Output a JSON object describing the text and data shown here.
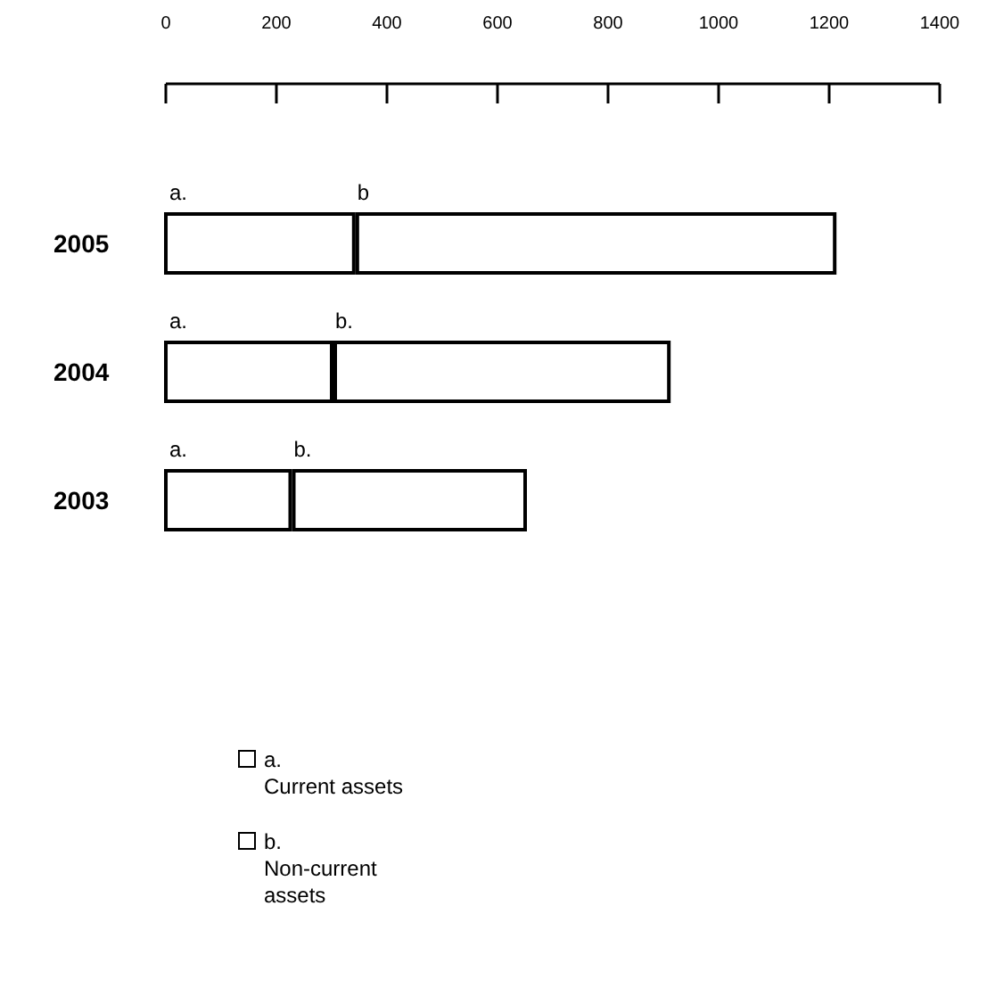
{
  "chart_data": {
    "type": "bar",
    "orientation": "horizontal",
    "stacked": true,
    "categories": [
      "2005",
      "2004",
      "2003"
    ],
    "xlim": [
      0,
      1400
    ],
    "xticks": [
      0,
      200,
      400,
      600,
      800,
      1000,
      1200,
      1400
    ],
    "legend": "bottom left",
    "grid": false,
    "series": [
      {
        "name": "Current assets",
        "color": "#ffffff",
        "values": [
          340,
          300,
          225
        ]
      },
      {
        "name": "Non-current assets",
        "color": "#ffffff",
        "values": [
          870,
          610,
          425
        ]
      }
    ],
    "annotations": [
      {
        "text": "a.",
        "x": 0,
        "y": "2005"
      },
      {
        "text": "b",
        "x": 340,
        "y": "2005"
      },
      {
        "text": "a.",
        "x": 0,
        "y": "2004"
      },
      {
        "text": "b.",
        "x": 300,
        "y": "2004"
      },
      {
        "text": "a.",
        "x": 0,
        "y": "2003"
      },
      {
        "text": "b.",
        "x": 225,
        "y": "2003"
      },
      "a.",
      "b."
    ]
  }
}
